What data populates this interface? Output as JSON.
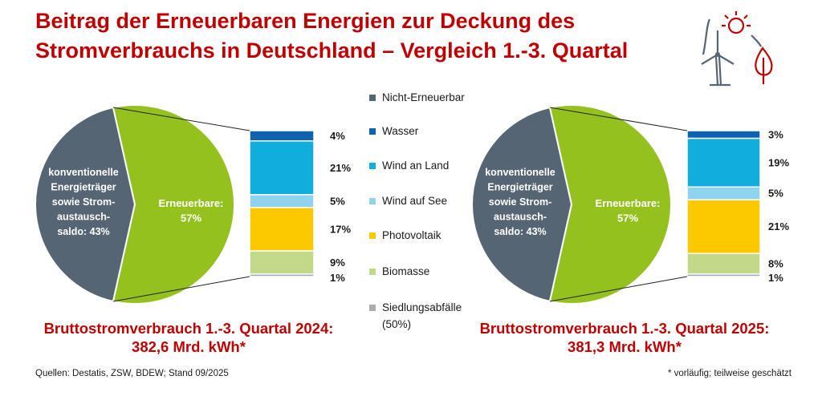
{
  "title_line1": "Beitrag der Erneuerbaren Energien zur Deckung des",
  "title_line2": "Stromverbrauchs in Deutschland – Vergleich 1.-3. Quartal",
  "legend": [
    {
      "label": "Nicht-Erneuerbar",
      "color": "#566573"
    },
    {
      "label": "Wasser",
      "color": "#0e62ae"
    },
    {
      "label": "Wind an Land",
      "color": "#12aedb"
    },
    {
      "label": "Wind auf See",
      "color": "#8fd3ee"
    },
    {
      "label": "Photovoltaik",
      "color": "#fcc800"
    },
    {
      "label": "Biomasse",
      "color": "#c3d98a"
    },
    {
      "label": "Siedlungsabfälle",
      "sublabel": "(50%)",
      "color": "#a7aeb4"
    }
  ],
  "chart_data": [
    {
      "type": "pie",
      "categories": [
        "konventionelle Energieträger sowie Strom-austausch-saldo",
        "Erneuerbare"
      ],
      "values": [
        43,
        57
      ],
      "slice_labels": [
        [
          "konventionelle",
          "Energieträger",
          "sowie Strom-",
          "austausch-",
          "saldo: 43%"
        ],
        [
          "Erneuerbare:",
          "57%"
        ]
      ],
      "colors": [
        "#566573",
        "#95c11f"
      ],
      "breakdown": {
        "type": "bar",
        "categories": [
          "Wasser",
          "Wind an Land",
          "Wind auf See",
          "Photovoltaik",
          "Biomasse",
          "Siedlungsabfälle"
        ],
        "values": [
          4,
          21,
          5,
          17,
          9,
          1
        ],
        "labels": [
          "4%",
          "21%",
          "5%",
          "17%",
          "9%",
          "1%"
        ]
      },
      "total_line1": "Bruttostromverbrauch 1.-3. Quartal 2024:",
      "total_line2": "382,6 Mrd. kWh*"
    },
    {
      "type": "pie",
      "categories": [
        "konventionelle Energieträger sowie Strom-austausch-saldo",
        "Erneuerbare"
      ],
      "values": [
        43,
        57
      ],
      "slice_labels": [
        [
          "konventionelle",
          "Energieträger",
          "sowie Strom-",
          "austausch-",
          "saldo: 43%"
        ],
        [
          "Erneuerbare:",
          "57%"
        ]
      ],
      "colors": [
        "#566573",
        "#95c11f"
      ],
      "breakdown": {
        "type": "bar",
        "categories": [
          "Wasser",
          "Wind an Land",
          "Wind auf See",
          "Photovoltaik",
          "Biomasse",
          "Siedlungsabfälle"
        ],
        "values": [
          3,
          19,
          5,
          21,
          8,
          1
        ],
        "labels": [
          "3%",
          "19%",
          "5%",
          "21%",
          "8%",
          "1%"
        ]
      },
      "total_line1": "Bruttostromverbrauch 1.-3. Quartal 2025:",
      "total_line2": "381,3 Mrd. kWh*"
    }
  ],
  "source_note": "Quellen: Destatis, ZSW, BDEW; Stand 09/2025",
  "footnote": "* vorläufig; teilweise geschätzt"
}
